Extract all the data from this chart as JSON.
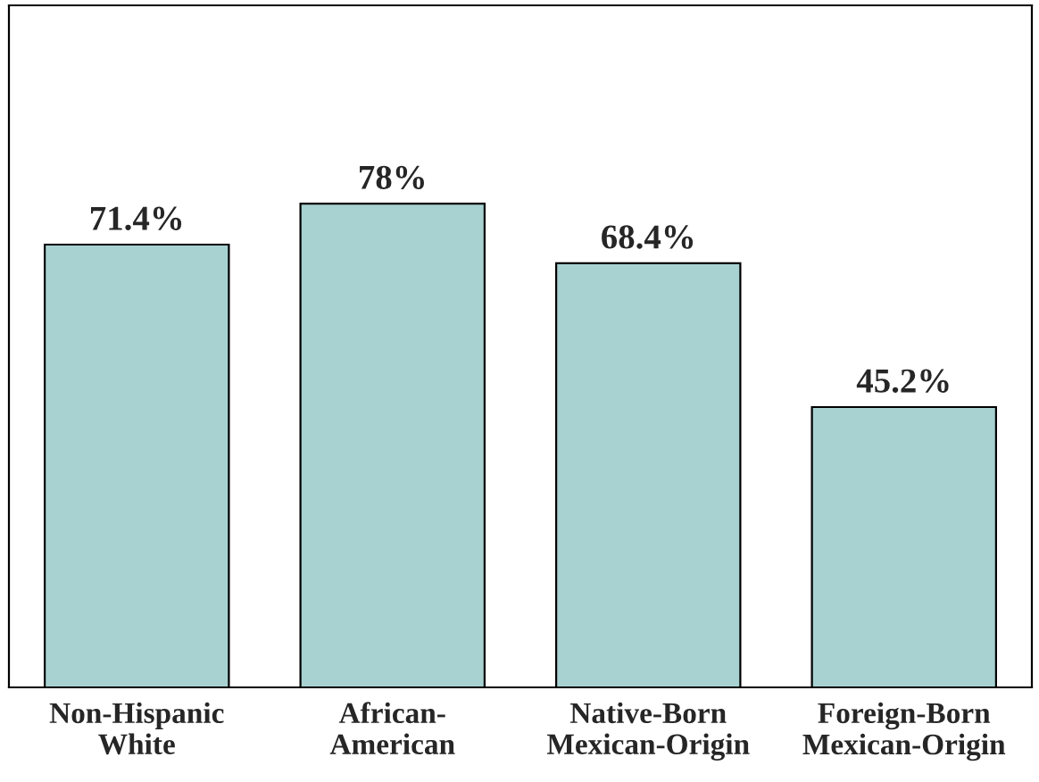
{
  "chart_data": {
    "type": "bar",
    "categories": [
      "Non-Hispanic\nWhite",
      "African-\nAmerican",
      "Native-Born\nMexican-Origin",
      "Foreign-Born\nMexican-Origin"
    ],
    "values": [
      71.4,
      78,
      68.4,
      45.2
    ],
    "value_labels": [
      "71.4%",
      "78%",
      "68.4%",
      "45.2%"
    ],
    "color": "#a8d2d2",
    "grid": false,
    "legend": false
  }
}
